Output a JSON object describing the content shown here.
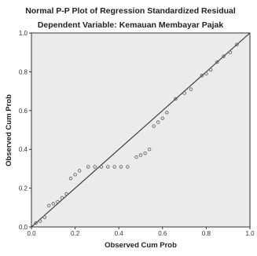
{
  "chart_data": {
    "type": "scatter",
    "title": "Normal P-P Plot of Regression Standardized Residual",
    "subtitle": "Dependent Variable: Kemauan Membayar Pajak",
    "xlabel": "Observed Cum Prob",
    "ylabel": "Observed Cum Prob",
    "xlim": [
      0,
      1
    ],
    "ylim": [
      0,
      1
    ],
    "xticks": [
      "0.0",
      "0.2",
      "0.4",
      "0.6",
      "0.8",
      "1.0"
    ],
    "yticks": [
      "0.0",
      "0.2",
      "0.4",
      "0.6",
      "0.8",
      "1.0"
    ],
    "grid": false,
    "reference_line": {
      "from": [
        0,
        0
      ],
      "to": [
        1,
        1
      ]
    },
    "colors": {
      "plot_bg": "#ebebeb",
      "points": "#555555",
      "line": "#222222"
    },
    "points": [
      [
        0.02,
        0.02
      ],
      [
        0.04,
        0.03
      ],
      [
        0.06,
        0.05
      ],
      [
        0.08,
        0.11
      ],
      [
        0.1,
        0.12
      ],
      [
        0.12,
        0.13
      ],
      [
        0.14,
        0.15
      ],
      [
        0.16,
        0.17
      ],
      [
        0.18,
        0.25
      ],
      [
        0.2,
        0.27
      ],
      [
        0.22,
        0.29
      ],
      [
        0.26,
        0.31
      ],
      [
        0.29,
        0.31
      ],
      [
        0.32,
        0.31
      ],
      [
        0.35,
        0.31
      ],
      [
        0.38,
        0.31
      ],
      [
        0.41,
        0.31
      ],
      [
        0.44,
        0.31
      ],
      [
        0.48,
        0.36
      ],
      [
        0.5,
        0.37
      ],
      [
        0.52,
        0.38
      ],
      [
        0.54,
        0.4
      ],
      [
        0.56,
        0.52
      ],
      [
        0.58,
        0.54
      ],
      [
        0.6,
        0.56
      ],
      [
        0.62,
        0.59
      ],
      [
        0.66,
        0.66
      ],
      [
        0.7,
        0.69
      ],
      [
        0.73,
        0.71
      ],
      [
        0.78,
        0.78
      ],
      [
        0.8,
        0.79
      ],
      [
        0.82,
        0.81
      ],
      [
        0.85,
        0.85
      ],
      [
        0.88,
        0.88
      ],
      [
        0.91,
        0.9
      ],
      [
        0.94,
        0.94
      ]
    ]
  }
}
